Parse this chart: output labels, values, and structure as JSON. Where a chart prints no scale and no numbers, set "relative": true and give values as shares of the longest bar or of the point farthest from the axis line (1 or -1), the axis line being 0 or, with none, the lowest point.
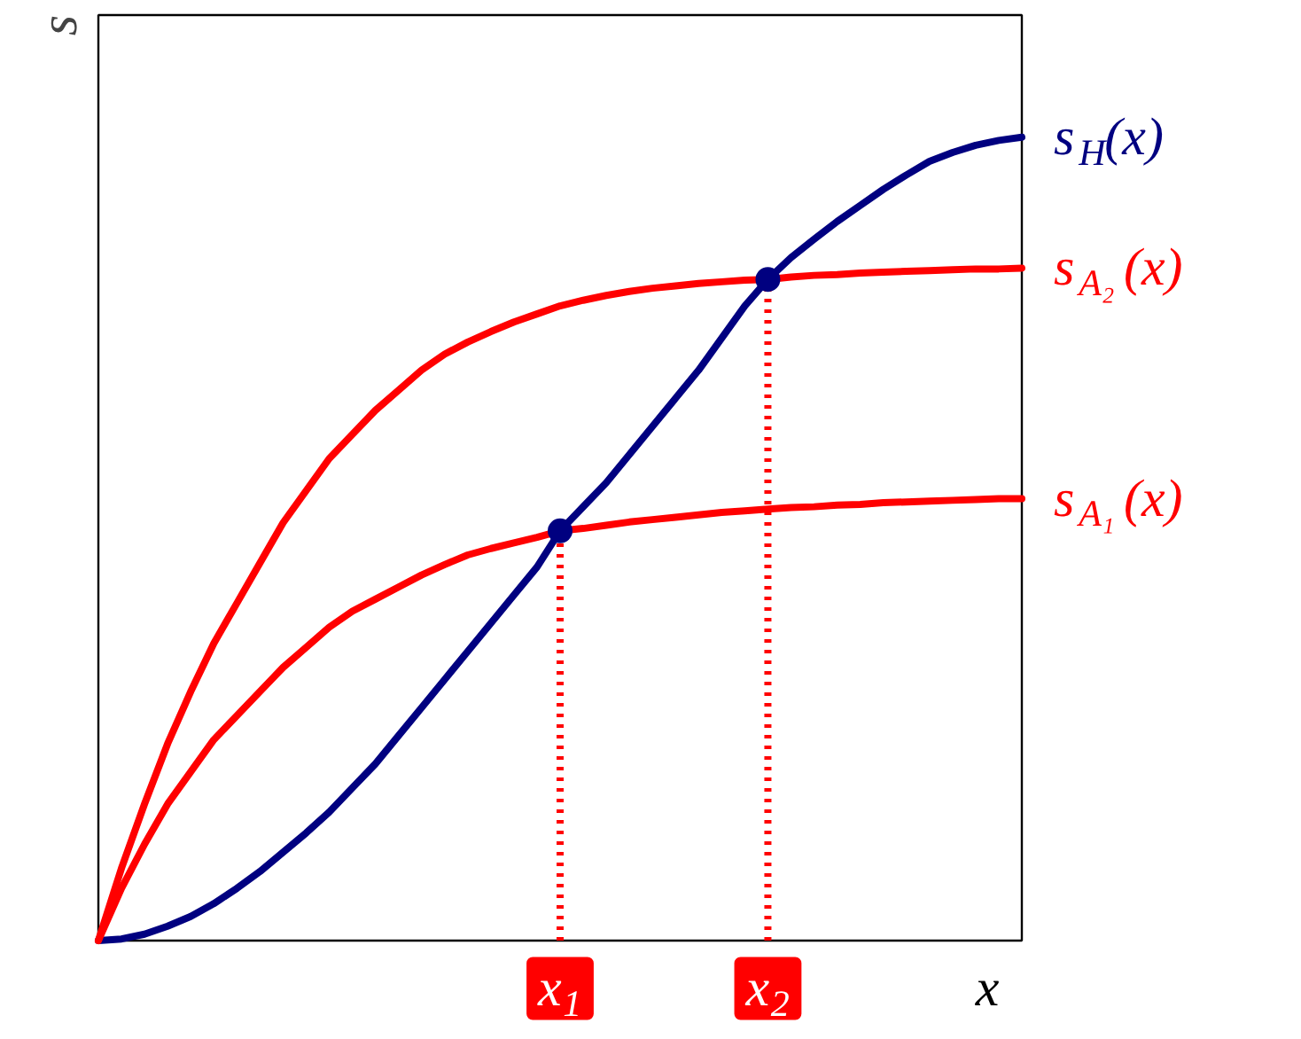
{
  "chart_data": {
    "type": "line",
    "relative": true,
    "xlabel": "x",
    "ylabel": "s",
    "categories": [
      null,
      null,
      null,
      null,
      null,
      null,
      null,
      null,
      null,
      null,
      null,
      null,
      null,
      null,
      null,
      null,
      null,
      null,
      null,
      null,
      "x$_{1}$",
      null,
      null,
      null,
      null,
      null,
      null,
      null,
      null,
      "x$_{2}$",
      null,
      null,
      null,
      null,
      null,
      null,
      null,
      null,
      null,
      null,
      null
    ],
    "grid": false,
    "line_style": "solid",
    "series": [
      {
        "name": "s$_{H}$(x)",
        "color": "#000080",
        "values": [
          0,
          0.002,
          0.008,
          0.018,
          0.03,
          0.046,
          0.065,
          0.086,
          0.11,
          0.134,
          0.16,
          0.19,
          0.22,
          0.255,
          0.29,
          0.325,
          0.36,
          0.395,
          0.43,
          0.465,
          0.51,
          0.54,
          0.57,
          0.605,
          0.64,
          0.675,
          0.71,
          0.75,
          0.79,
          0.823,
          0.85,
          0.873,
          0.895,
          0.915,
          0.935,
          0.953,
          0.97,
          0.981,
          0.99,
          0.996,
          1.0
        ]
      },
      {
        "name": "s$_{A₂}$(x)",
        "color": "#ff0000",
        "values": [
          0,
          0.09,
          0.17,
          0.245,
          0.31,
          0.37,
          0.42,
          0.47,
          0.52,
          0.56,
          0.6,
          0.63,
          0.66,
          0.685,
          0.71,
          0.73,
          0.745,
          0.758,
          0.77,
          0.78,
          0.79,
          0.797,
          0.803,
          0.808,
          0.812,
          0.815,
          0.818,
          0.82,
          0.822,
          0.823,
          0.826,
          0.828,
          0.829,
          0.831,
          0.832,
          0.833,
          0.834,
          0.835,
          0.836,
          0.836,
          0.837
        ]
      },
      {
        "name": "s$_{A₁}$(x)",
        "color": "#ff0000",
        "values": [
          0,
          0.065,
          0.12,
          0.17,
          0.21,
          0.25,
          0.28,
          0.31,
          0.34,
          0.365,
          0.39,
          0.41,
          0.425,
          0.44,
          0.455,
          0.468,
          0.48,
          0.488,
          0.495,
          0.502,
          0.51,
          0.513,
          0.517,
          0.521,
          0.524,
          0.527,
          0.53,
          0.533,
          0.535,
          0.537,
          0.539,
          0.54,
          0.542,
          0.543,
          0.545,
          0.546,
          0.547,
          0.548,
          0.549,
          0.55,
          0.55
        ]
      },
      {
        "type": "lollipop",
        "line_style": "dotted",
        "marker": "circle",
        "color": "#ff0000",
        "colors": [
          null,
          null,
          null,
          null,
          null,
          null,
          null,
          null,
          null,
          null,
          null,
          null,
          null,
          null,
          null,
          null,
          null,
          null,
          null,
          null,
          "#000080",
          null,
          null,
          null,
          null,
          null,
          null,
          null,
          null,
          "#000080",
          null,
          null,
          null,
          null,
          null,
          null,
          null,
          null,
          null,
          null,
          null
        ],
        "values": [
          null,
          null,
          null,
          null,
          null,
          null,
          null,
          null,
          null,
          null,
          null,
          null,
          null,
          null,
          null,
          null,
          null,
          null,
          null,
          null,
          0.51,
          null,
          null,
          null,
          null,
          null,
          null,
          null,
          null,
          0.823,
          null,
          null,
          null,
          null,
          null,
          null,
          null,
          null,
          null,
          null,
          null
        ]
      }
    ]
  }
}
